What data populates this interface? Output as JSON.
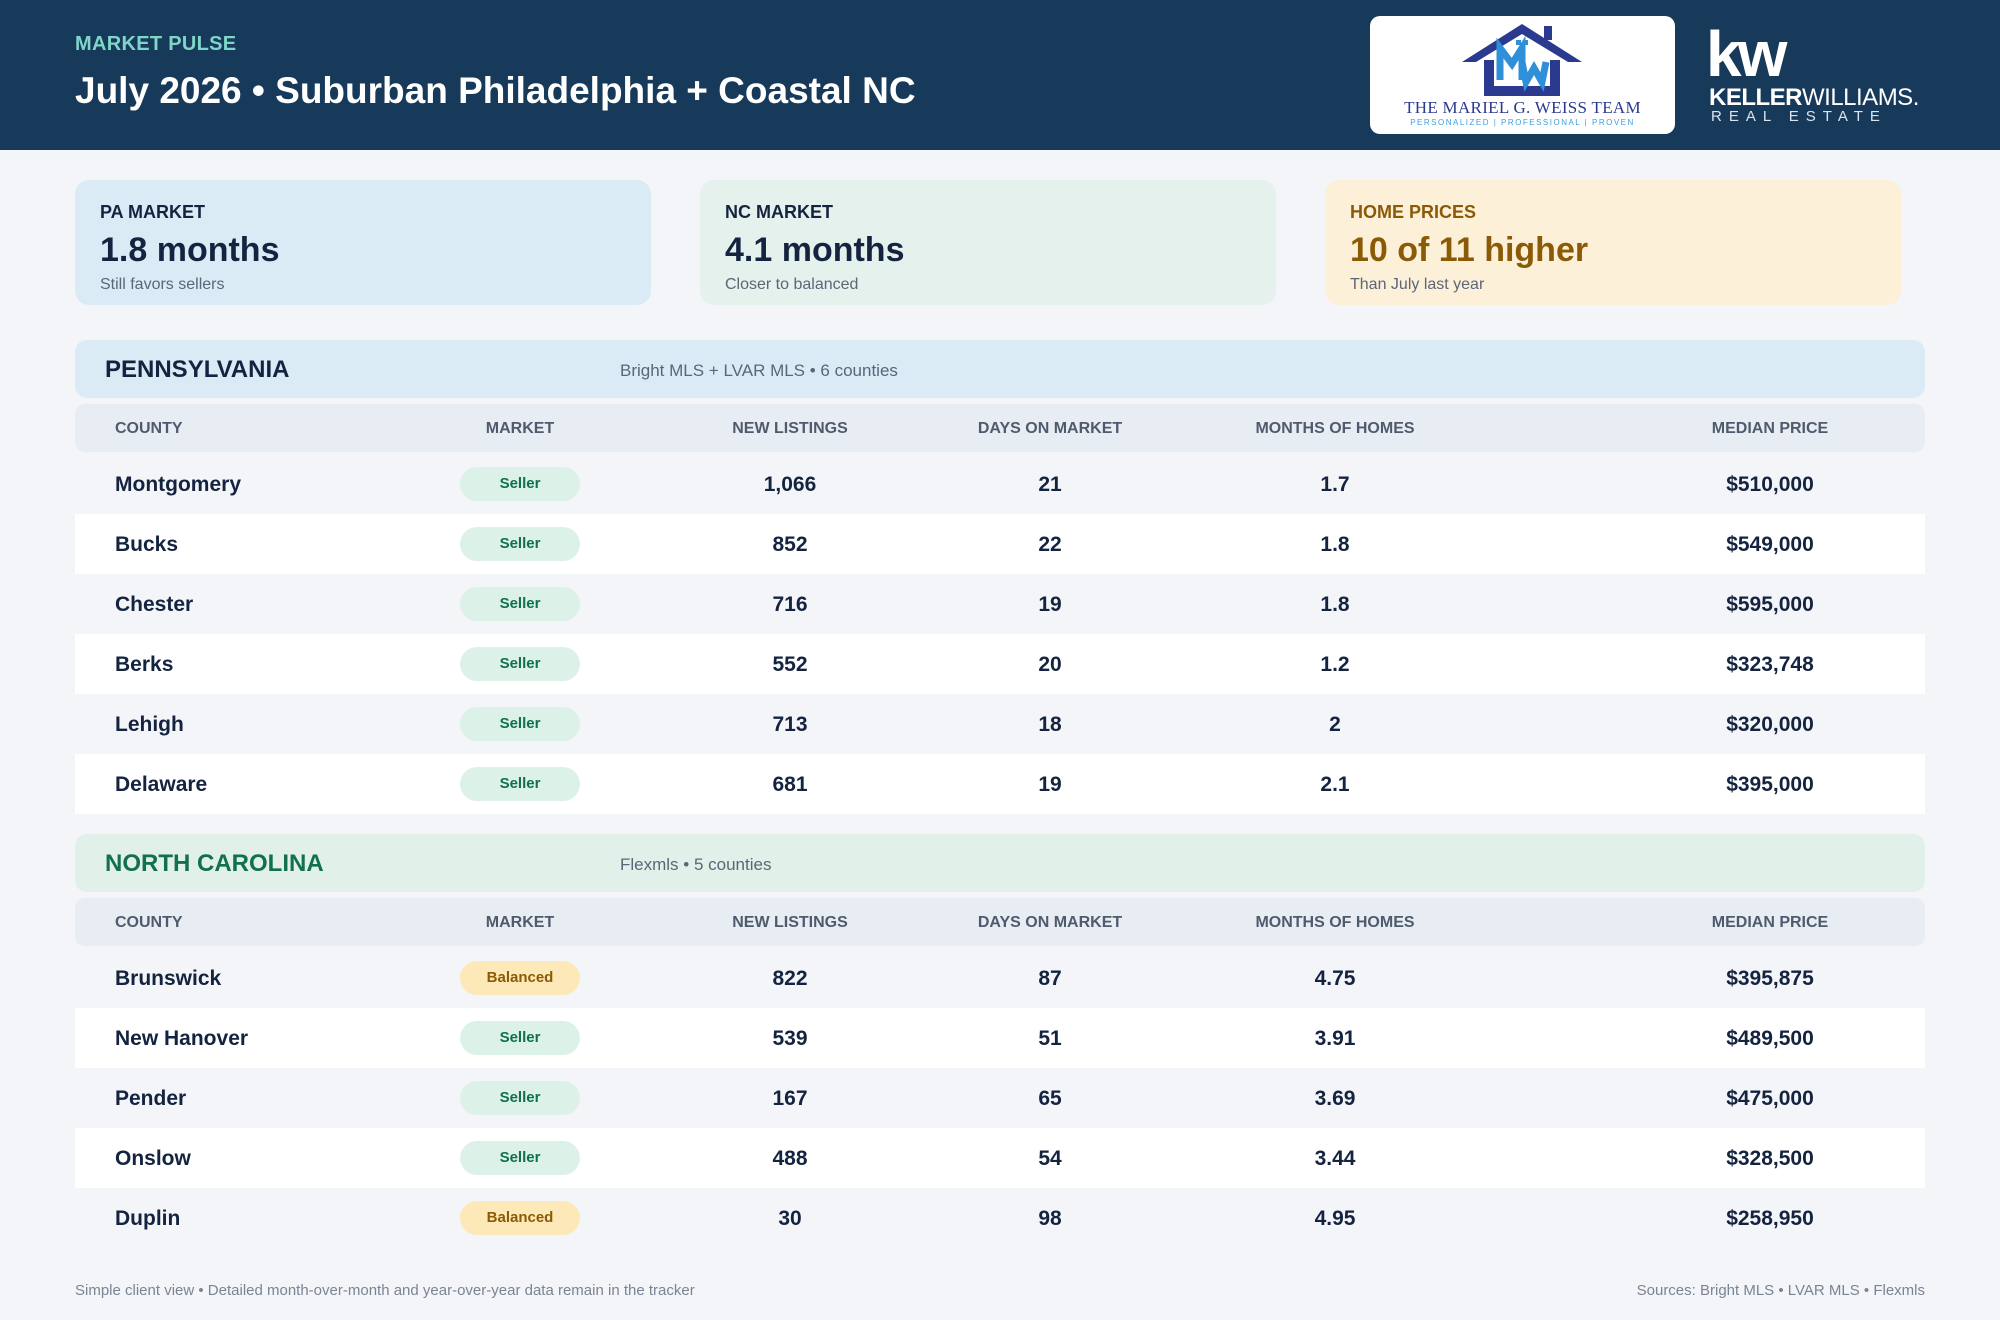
{
  "header": {
    "eyebrow": "MARKET PULSE",
    "title": "July 2026 • Suburban Philadelphia + Coastal NC",
    "team_logo": {
      "name": "THE MARIEL G. WEISS TEAM",
      "tagline": "PERSONALIZED | PROFESSIONAL | PROVEN",
      "icon": "house-mw-icon"
    },
    "brand_logo": {
      "mark": "kw",
      "name_bold": "KELLER",
      "name_light": "WILLIAMS.",
      "sub": "REAL ESTATE"
    }
  },
  "cards": [
    {
      "label": "PA MARKET",
      "value": "1.8 months",
      "sub": "Still favors sellers",
      "color": "#daebf6"
    },
    {
      "label": "NC MARKET",
      "value": "4.1 months",
      "sub": "Closer to balanced",
      "color": "#e5f1ec"
    },
    {
      "label": "HOME PRICES",
      "value": "10 of 11 higher",
      "sub": "Than July last year",
      "color": "#fdf0d8"
    }
  ],
  "columns": [
    "COUNTY",
    "MARKET",
    "NEW LISTINGS",
    "DAYS ON MARKET",
    "MONTHS OF HOMES",
    "MEDIAN PRICE"
  ],
  "pennsylvania": {
    "title": "PENNSYLVANIA",
    "source": "Bright MLS + LVAR MLS • 6 counties",
    "rows": [
      {
        "county": "Montgomery",
        "market": "Seller",
        "new_listings": "1,066",
        "dom": "21",
        "moh": "1.7",
        "price": "$510,000"
      },
      {
        "county": "Bucks",
        "market": "Seller",
        "new_listings": "852",
        "dom": "22",
        "moh": "1.8",
        "price": "$549,000"
      },
      {
        "county": "Chester",
        "market": "Seller",
        "new_listings": "716",
        "dom": "19",
        "moh": "1.8",
        "price": "$595,000"
      },
      {
        "county": "Berks",
        "market": "Seller",
        "new_listings": "552",
        "dom": "20",
        "moh": "1.2",
        "price": "$323,748"
      },
      {
        "county": "Lehigh",
        "market": "Seller",
        "new_listings": "713",
        "dom": "18",
        "moh": "2",
        "price": "$320,000"
      },
      {
        "county": "Delaware",
        "market": "Seller",
        "new_listings": "681",
        "dom": "19",
        "moh": "2.1",
        "price": "$395,000"
      }
    ]
  },
  "north_carolina": {
    "title": "NORTH CAROLINA",
    "source": "Flexmls • 5 counties",
    "rows": [
      {
        "county": "Brunswick",
        "market": "Balanced",
        "new_listings": "822",
        "dom": "87",
        "moh": "4.75",
        "price": "$395,875"
      },
      {
        "county": "New Hanover",
        "market": "Seller",
        "new_listings": "539",
        "dom": "51",
        "moh": "3.91",
        "price": "$489,500"
      },
      {
        "county": "Pender",
        "market": "Seller",
        "new_listings": "167",
        "dom": "65",
        "moh": "3.69",
        "price": "$475,000"
      },
      {
        "county": "Onslow",
        "market": "Seller",
        "new_listings": "488",
        "dom": "54",
        "moh": "3.44",
        "price": "$328,500"
      },
      {
        "county": "Duplin",
        "market": "Balanced",
        "new_listings": "30",
        "dom": "98",
        "moh": "4.95",
        "price": "$258,950"
      }
    ]
  },
  "footer": {
    "note": "Simple client view • Detailed month-over-month and year-over-year data remain in the tracker",
    "sources": "Sources: Bright MLS • LVAR MLS • Flexmls"
  }
}
